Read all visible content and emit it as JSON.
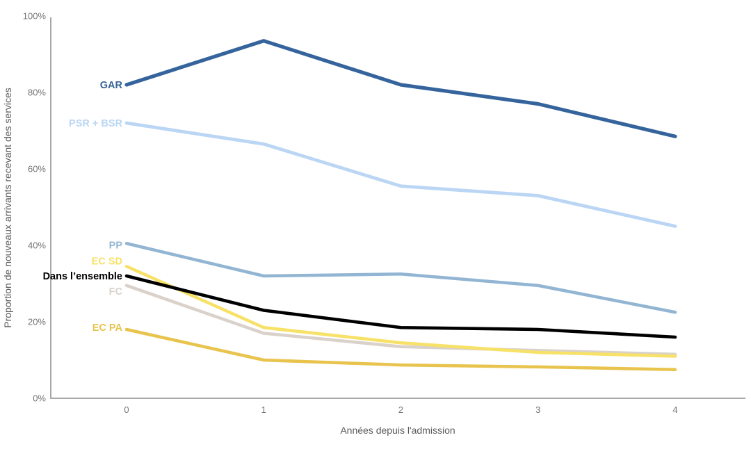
{
  "chart_data": {
    "type": "line",
    "title": "",
    "xlabel": "Années depuis l'admission",
    "ylabel": "Proportion de nouveaux arrivants recevant des services",
    "x": [
      0,
      1,
      2,
      3,
      4
    ],
    "ylim": [
      0,
      100
    ],
    "ytick_step": 20,
    "ytick_suffix": "%",
    "grid": false,
    "legend_position": "direct-labels-left-of-lines",
    "axis_color": "#9d9d9d",
    "tick_text_color": "#757575",
    "axis_title_color": "#595959",
    "series": [
      {
        "name": "GAR",
        "values": [
          82,
          93.5,
          82,
          77,
          68.5
        ],
        "color": "#35649C",
        "width": 5.2,
        "label_dy": 0
      },
      {
        "name": "PSR + BSR",
        "values": [
          72,
          66.5,
          55.5,
          53,
          45
        ],
        "color": "#BBD6F4",
        "width": 4.8,
        "label_dy": 0
      },
      {
        "name": "PP",
        "values": [
          40.5,
          32,
          32.5,
          29.5,
          22.5
        ],
        "color": "#92B5D3",
        "width": 4.5,
        "label_dy": 2
      },
      {
        "name": "EC SD",
        "values": [
          34.5,
          18.5,
          14.5,
          12,
          11
        ],
        "color": "#F7E166",
        "width": 4.5,
        "label_dy": -8
      },
      {
        "name": "Dans l’ensemble",
        "values": [
          32,
          23,
          18.5,
          18,
          16
        ],
        "color": "#000000",
        "width": 4.6,
        "label_dy": 0,
        "label_size": 13.5
      },
      {
        "name": "FC",
        "values": [
          29.5,
          17,
          13.5,
          12.5,
          11.5
        ],
        "color": "#D9D1CA",
        "width": 4.5,
        "label_dy": 8
      },
      {
        "name": "EC PA",
        "values": [
          18,
          10,
          8.7,
          8.2,
          7.5
        ],
        "color": "#E8C44E",
        "width": 4.5,
        "label_dy": -3
      }
    ]
  }
}
